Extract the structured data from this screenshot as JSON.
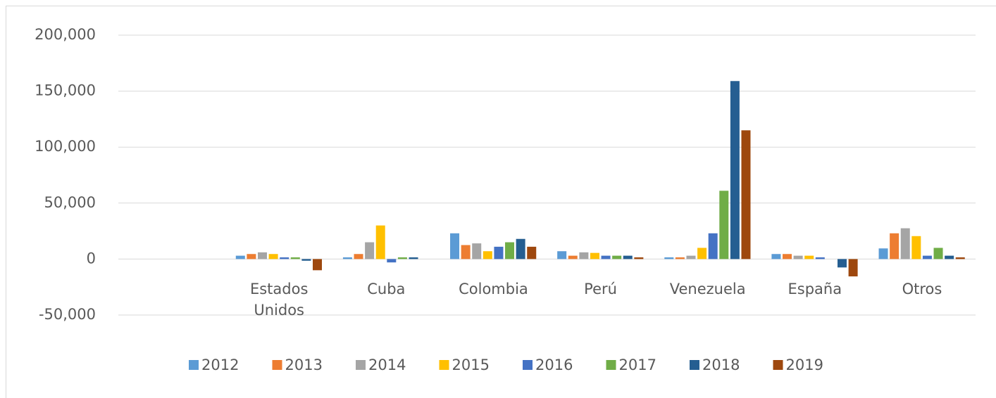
{
  "chart_data": {
    "type": "bar",
    "categories": [
      null,
      "Estados Unidos",
      "Cuba",
      "Colombia",
      "Perú",
      "Venezuela",
      "España",
      "Otros"
    ],
    "series": [
      {
        "name": "2012",
        "color": "#5b9bd5",
        "values": [
          null,
          3000,
          1500,
          23000,
          7000,
          1500,
          4500,
          9500
        ]
      },
      {
        "name": "2013",
        "color": "#ed7d31",
        "values": [
          null,
          4500,
          4500,
          12500,
          3000,
          1500,
          4500,
          23000
        ]
      },
      {
        "name": "2014",
        "color": "#a5a5a5",
        "values": [
          null,
          6000,
          15000,
          14000,
          6000,
          3000,
          3000,
          27500
        ]
      },
      {
        "name": "2015",
        "color": "#ffc000",
        "values": [
          null,
          4500,
          30000,
          7000,
          5500,
          10000,
          3000,
          20500
        ]
      },
      {
        "name": "2016",
        "color": "#4472c4",
        "values": [
          null,
          1500,
          -3000,
          11000,
          3000,
          23000,
          1500,
          3000
        ]
      },
      {
        "name": "2017",
        "color": "#70ad47",
        "values": [
          null,
          1500,
          1500,
          15000,
          3000,
          61000,
          0,
          10000
        ]
      },
      {
        "name": "2018",
        "color": "#255e91",
        "values": [
          null,
          -1500,
          1500,
          18000,
          3000,
          159000,
          -7500,
          3000
        ]
      },
      {
        "name": "2019",
        "color": "#9e480e",
        "values": [
          null,
          -10000,
          0,
          11000,
          1500,
          115000,
          -15500,
          1500
        ]
      }
    ],
    "ylim": [
      -50000,
      200000
    ],
    "yticks": [
      {
        "value": -50000,
        "label": "-50,000"
      },
      0,
      {
        "value": 50000,
        "label": "50,000"
      },
      {
        "value": 100000,
        "label": "100,000"
      },
      {
        "value": 150000,
        "label": "150,000"
      },
      {
        "value": 200000,
        "label": "200,000"
      }
    ],
    "grid": true,
    "legend": "bottom"
  }
}
